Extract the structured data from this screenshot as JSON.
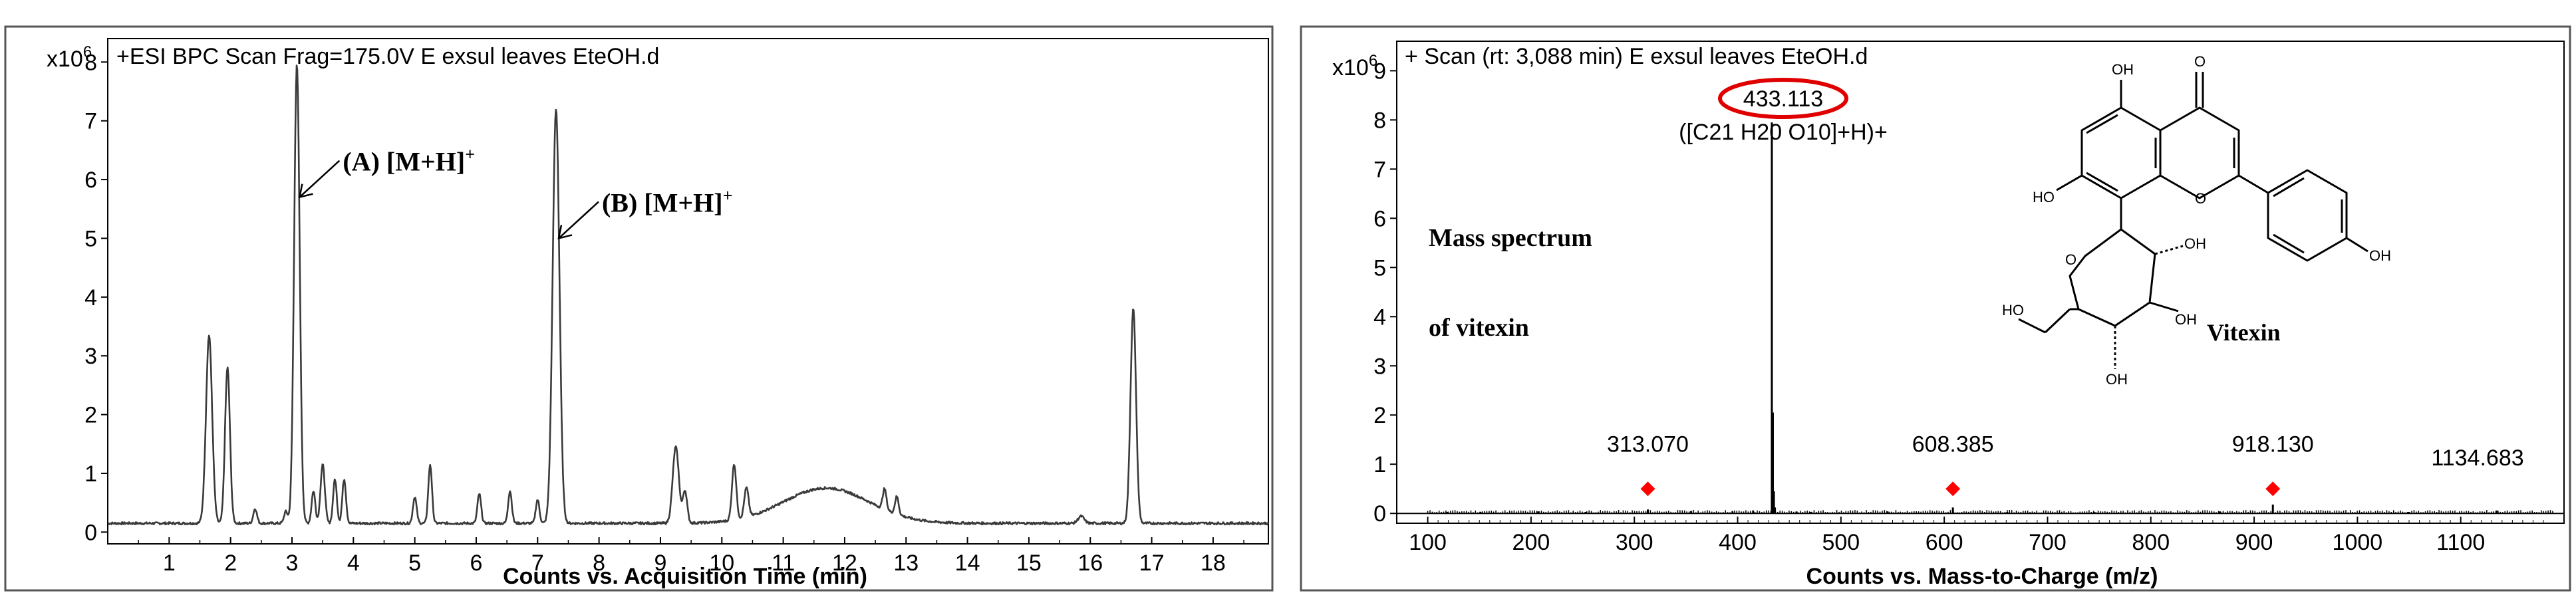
{
  "chart_data": [
    {
      "type": "line",
      "id": "chromatogram",
      "header": "+ESI BPC Scan Frag=175.0V E exsul leaves  EteOH.d",
      "y_exponent_label": "x10",
      "y_exponent_power": "6",
      "xlabel": "Counts vs. Acquisition Time (min)",
      "xlim": [
        0,
        18.9
      ],
      "ylim": [
        -0.2,
        8.4
      ],
      "x_ticks": [
        "1",
        "2",
        "3",
        "4",
        "5",
        "6",
        "7",
        "8",
        "9",
        "10",
        "11",
        "12",
        "13",
        "14",
        "15",
        "16",
        "17",
        "18"
      ],
      "y_ticks": [
        "0",
        "1",
        "2",
        "3",
        "4",
        "5",
        "6",
        "7",
        "8"
      ],
      "baseline": 0.15,
      "peaks": [
        {
          "x": 1.65,
          "h": 3.2,
          "w": 0.05
        },
        {
          "x": 1.95,
          "h": 2.65,
          "w": 0.04
        },
        {
          "x": 2.4,
          "h": 0.25,
          "w": 0.03
        },
        {
          "x": 2.9,
          "h": 0.2,
          "w": 0.03
        },
        {
          "x": 3.08,
          "h": 7.8,
          "w": 0.045
        },
        {
          "x": 3.35,
          "h": 0.55,
          "w": 0.03
        },
        {
          "x": 3.5,
          "h": 1.0,
          "w": 0.035
        },
        {
          "x": 3.7,
          "h": 0.75,
          "w": 0.03
        },
        {
          "x": 3.85,
          "h": 0.75,
          "w": 0.03
        },
        {
          "x": 5.0,
          "h": 0.45,
          "w": 0.03
        },
        {
          "x": 5.25,
          "h": 1.0,
          "w": 0.03
        },
        {
          "x": 6.05,
          "h": 0.5,
          "w": 0.03
        },
        {
          "x": 6.55,
          "h": 0.55,
          "w": 0.03
        },
        {
          "x": 7.0,
          "h": 0.4,
          "w": 0.03
        },
        {
          "x": 7.3,
          "h": 7.05,
          "w": 0.055
        },
        {
          "x": 9.25,
          "h": 1.3,
          "w": 0.05
        },
        {
          "x": 9.4,
          "h": 0.55,
          "w": 0.035
        },
        {
          "x": 10.2,
          "h": 0.95,
          "w": 0.035
        },
        {
          "x": 10.4,
          "h": 0.5,
          "w": 0.035
        },
        {
          "x": 11.7,
          "h": 0.6,
          "w": 0.7
        },
        {
          "x": 12.65,
          "h": 0.35,
          "w": 0.03
        },
        {
          "x": 12.85,
          "h": 0.3,
          "w": 0.03
        },
        {
          "x": 15.85,
          "h": 0.12,
          "w": 0.05
        },
        {
          "x": 16.7,
          "h": 3.65,
          "w": 0.045
        }
      ],
      "annotations": [
        {
          "label": "(A) [M+H]",
          "sup": "+",
          "x": 3.08,
          "y": 5.7
        },
        {
          "label": "(B) [M+H]",
          "sup": "+",
          "x": 7.3,
          "y": 5.0
        }
      ]
    },
    {
      "type": "bar",
      "id": "mass-spectrum",
      "header": "+ Scan (rt: 3,088 min) E exsul leaves  EteOH.d",
      "y_exponent_label": "x10",
      "y_exponent_power": "6",
      "xlabel": "Counts vs. Mass-to-Charge (m/z)",
      "xlim": [
        70,
        1200
      ],
      "ylim": [
        -0.2,
        9.6
      ],
      "x_ticks": [
        "100",
        "200",
        "300",
        "400",
        "500",
        "600",
        "700",
        "800",
        "900",
        "1000",
        "1100"
      ],
      "y_ticks": [
        "0",
        "1",
        "2",
        "3",
        "4",
        "5",
        "6",
        "7",
        "8",
        "9"
      ],
      "main_peak": {
        "mz": 433.113,
        "label": "433.113",
        "formula": "([C21 H20 O10]+H)+",
        "intensity": 7.95
      },
      "sticks": [
        {
          "mz": 434.1,
          "intensity": 2.05
        },
        {
          "mz": 435.1,
          "intensity": 0.45
        },
        {
          "mz": 436.1,
          "intensity": 0.12
        },
        {
          "mz": 313.07,
          "intensity": 0.08
        },
        {
          "mz": 608.385,
          "intensity": 0.12
        },
        {
          "mz": 918.13,
          "intensity": 0.18
        },
        {
          "mz": 1134.683,
          "intensity": 0.06
        },
        {
          "mz": 119,
          "intensity": 0.03
        },
        {
          "mz": 151,
          "intensity": 0.03
        },
        {
          "mz": 207,
          "intensity": 0.04
        },
        {
          "mz": 253,
          "intensity": 0.03
        },
        {
          "mz": 355,
          "intensity": 0.05
        },
        {
          "mz": 395,
          "intensity": 0.04
        },
        {
          "mz": 415,
          "intensity": 0.06
        },
        {
          "mz": 457,
          "intensity": 0.04
        },
        {
          "mz": 471,
          "intensity": 0.03
        },
        {
          "mz": 545,
          "intensity": 0.04
        },
        {
          "mz": 661,
          "intensity": 0.03
        },
        {
          "mz": 745,
          "intensity": 0.03
        },
        {
          "mz": 867,
          "intensity": 0.04
        },
        {
          "mz": 1049,
          "intensity": 0.03
        }
      ],
      "marked_peaks": [
        {
          "mz": 313.07,
          "label": "313.070"
        },
        {
          "mz": 608.385,
          "label": "608.385"
        },
        {
          "mz": 918.13,
          "label": "918.130"
        }
      ],
      "extra_label": "1134.683",
      "annotations": {
        "line1": "Mass  spectrum",
        "line2": "of vitexin",
        "compound": "Vitexin"
      },
      "structure_labels": {
        "oh_top": "OH",
        "oh_left": "HO",
        "oh_right": "OH",
        "oh_sugar1": "OH",
        "oh_sugar2": "OH",
        "oh_sugar3": "OH",
        "ho_ch2": "HO",
        "o_ring": "O",
        "o_carbonyl": "O",
        "o_sugar": "O"
      },
      "colors": {
        "marker": "#ff0000",
        "highlight": "#e00000"
      }
    }
  ]
}
